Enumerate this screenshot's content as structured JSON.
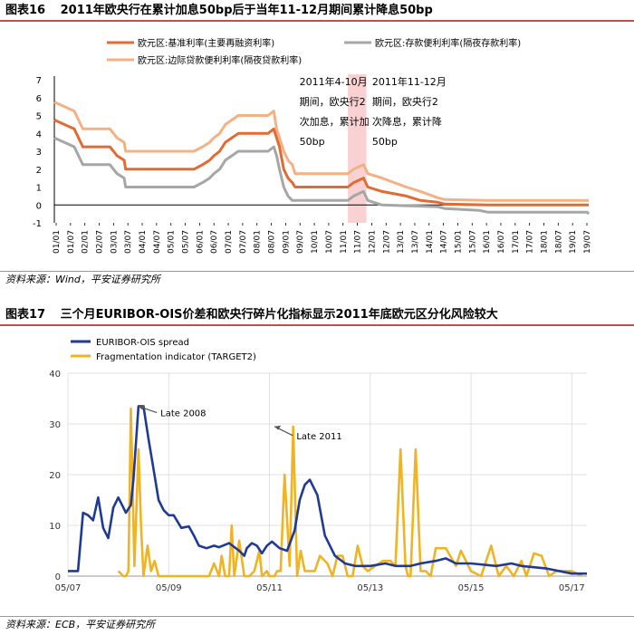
{
  "figures": [
    {
      "number": "图表16",
      "title": "2011年欧央行在累计加息50bp后于当年11-12月期间累计降息50bp",
      "source": "资料来源：Wind，平安证券研究所"
    },
    {
      "number": "图表17",
      "title": "三个月EURIBOR-OIS价差和欧央行碎片化指标显示2011年底欧元区分化风险较大",
      "source": "资料来源：ECB，平安证券研究所"
    }
  ],
  "colors": {
    "title_rule": "#c0504d",
    "main_refi": "#e26b32",
    "deposit": "#a6a6a6",
    "marginal": "#f4b183",
    "highlight": "#f7c6c7",
    "euribor": "#1f3a93",
    "fragmentation": "#f0b323"
  },
  "chart_data": [
    {
      "type": "line",
      "title": "2011年欧央行在累计加息50bp后于当年11-12月期间累计降息50bp",
      "xlabel": "",
      "ylabel": "",
      "ylim": [
        -1,
        7
      ],
      "yticks": [
        "-1",
        "0",
        "1",
        "2",
        "3",
        "4",
        "5",
        "6",
        "7"
      ],
      "x_start": 2001.0,
      "x_end": 2019.75,
      "x_tick_labels": [
        "01/01",
        "01/07",
        "02/01",
        "02/07",
        "03/01",
        "03/07",
        "04/01",
        "04/07",
        "05/01",
        "05/07",
        "06/01",
        "06/07",
        "07/01",
        "07/07",
        "08/01",
        "08/07",
        "09/01",
        "09/07",
        "10/01",
        "10/07",
        "11/01",
        "11/07",
        "12/01",
        "12/07",
        "13/01",
        "13/07",
        "14/01",
        "14/07",
        "15/01",
        "15/07",
        "16/01",
        "16/07",
        "17/01",
        "17/07",
        "18/01",
        "18/07",
        "19/01",
        "19/07"
      ],
      "highlight_span": [
        2011.3,
        2011.95
      ],
      "annotations": [
        {
          "text_lines": [
            "2011年4-10月",
            "期间，欧央行2",
            "次加息，累计加",
            "50bp"
          ],
          "x": 2009.6,
          "y": 6.6
        },
        {
          "text_lines": [
            "2011年11-12月",
            "期间，欧央行2",
            "次降息，累计降",
            "50bp"
          ],
          "x": 2012.15,
          "y": 6.6
        }
      ],
      "series": [
        {
          "name": "欧元区:基准利率(主要再融资利率)",
          "x": [
            2001.0,
            2001.35,
            2001.7,
            2001.85,
            2002.0,
            2002.95,
            2003.2,
            2003.45,
            2003.5,
            2005.9,
            2006.2,
            2006.45,
            2006.6,
            2006.8,
            2007.0,
            2007.45,
            2008.5,
            2008.7,
            2008.8,
            2008.9,
            2009.05,
            2009.2,
            2009.35,
            2009.45,
            2011.3,
            2011.5,
            2011.85,
            2012.0,
            2012.5,
            2013.35,
            2013.85,
            2014.45,
            2014.7,
            2016.2,
            2019.75
          ],
          "values": [
            4.75,
            4.5,
            4.25,
            3.75,
            3.25,
            3.25,
            2.75,
            2.5,
            2.0,
            2.0,
            2.25,
            2.5,
            2.75,
            3.0,
            3.5,
            4.0,
            4.0,
            4.25,
            3.75,
            3.25,
            2.0,
            1.5,
            1.25,
            1.0,
            1.0,
            1.25,
            1.5,
            1.0,
            0.75,
            0.5,
            0.25,
            0.15,
            0.05,
            0.0,
            0.0
          ]
        },
        {
          "name": "欧元区:存款便利利率(隔夜存款利率)",
          "x": [
            2001.0,
            2001.35,
            2001.7,
            2001.85,
            2002.0,
            2002.95,
            2003.2,
            2003.45,
            2003.5,
            2005.9,
            2006.2,
            2006.45,
            2006.6,
            2006.8,
            2007.0,
            2007.45,
            2008.5,
            2008.7,
            2008.8,
            2008.9,
            2009.05,
            2009.2,
            2009.35,
            2011.3,
            2011.5,
            2011.85,
            2012.0,
            2012.5,
            2014.45,
            2014.7,
            2015.9,
            2016.2,
            2019.7,
            2019.75
          ],
          "values": [
            3.75,
            3.5,
            3.25,
            2.75,
            2.25,
            2.25,
            1.75,
            1.5,
            1.0,
            1.0,
            1.25,
            1.5,
            1.75,
            2.0,
            2.5,
            3.0,
            3.0,
            3.25,
            2.75,
            2.0,
            1.0,
            0.5,
            0.25,
            0.25,
            0.5,
            0.75,
            0.25,
            0.0,
            -0.1,
            -0.2,
            -0.3,
            -0.4,
            -0.4,
            -0.5
          ]
        },
        {
          "name": "欧元区:边际贷款便利利率(隔夜贷款利率)",
          "x": [
            2001.0,
            2001.35,
            2001.7,
            2001.85,
            2002.0,
            2002.95,
            2003.2,
            2003.45,
            2003.5,
            2005.9,
            2006.2,
            2006.45,
            2006.6,
            2006.8,
            2007.0,
            2007.45,
            2008.5,
            2008.7,
            2008.8,
            2008.9,
            2009.05,
            2009.2,
            2009.35,
            2009.45,
            2011.3,
            2011.5,
            2011.85,
            2012.0,
            2012.5,
            2013.35,
            2013.85,
            2014.45,
            2014.7,
            2016.2,
            2019.75
          ],
          "values": [
            5.75,
            5.5,
            5.25,
            4.75,
            4.25,
            4.25,
            3.75,
            3.5,
            3.0,
            3.0,
            3.25,
            3.5,
            3.75,
            4.0,
            4.5,
            5.0,
            5.0,
            5.25,
            4.25,
            3.75,
            3.0,
            2.5,
            2.25,
            1.75,
            1.75,
            2.0,
            2.25,
            1.75,
            1.5,
            1.0,
            0.75,
            0.4,
            0.3,
            0.25,
            0.25
          ]
        }
      ]
    },
    {
      "type": "line",
      "title": "三个月EURIBOR-OIS价差和欧央行碎片化指标显示2011年底欧元区分化风险较大",
      "xlabel": "",
      "ylabel": "",
      "ylim": [
        0,
        40
      ],
      "yticks": [
        "0",
        "10",
        "20",
        "30",
        "40"
      ],
      "x_start": 2007.0,
      "x_end": 2017.3,
      "x_tick_labels": [
        "05/07",
        "05/09",
        "05/11",
        "05/13",
        "05/15",
        "05/17"
      ],
      "x_tick_positions": [
        2007.0,
        2009.0,
        2011.0,
        2013.0,
        2015.0,
        2017.0
      ],
      "annotations": [
        {
          "text": "Late 2008",
          "x": 2008.8,
          "y": 31.5,
          "arrow_to_x": 2008.4,
          "arrow_to_y": 33.5
        },
        {
          "text": "Late 2011",
          "x": 2011.5,
          "y": 27.0,
          "arrow_to_x": 2011.1,
          "arrow_to_y": 29.5
        }
      ],
      "series": [
        {
          "name": "EURIBOR-OIS spread",
          "x": [
            2007.0,
            2007.2,
            2007.3,
            2007.4,
            2007.5,
            2007.6,
            2007.7,
            2007.8,
            2007.9,
            2008.0,
            2008.15,
            2008.25,
            2008.3,
            2008.4,
            2008.5,
            2008.6,
            2008.7,
            2008.8,
            2008.9,
            2009.0,
            2009.1,
            2009.25,
            2009.4,
            2009.5,
            2009.6,
            2009.75,
            2009.9,
            2010.0,
            2010.2,
            2010.4,
            2010.5,
            2010.55,
            2010.65,
            2010.75,
            2010.85,
            2010.95,
            2011.05,
            2011.2,
            2011.35,
            2011.5,
            2011.6,
            2011.7,
            2011.8,
            2011.95,
            2012.1,
            2012.3,
            2012.5,
            2012.7,
            2013.0,
            2013.3,
            2013.5,
            2013.8,
            2014.0,
            2014.3,
            2014.5,
            2014.7,
            2015.0,
            2015.5,
            2015.8,
            2016.0,
            2016.5,
            2017.0,
            2017.3
          ],
          "values": [
            1,
            1,
            12.5,
            12,
            11,
            15.5,
            9.5,
            7.5,
            13.5,
            15.5,
            12.5,
            14,
            19,
            33.5,
            33.5,
            27,
            21,
            15,
            13,
            12,
            12,
            9.5,
            9.8,
            8,
            6,
            5.5,
            6,
            5.7,
            6.5,
            5,
            4,
            5.5,
            6.5,
            6,
            4.5,
            6,
            6.8,
            5.5,
            5,
            9,
            15,
            18,
            19,
            16,
            8,
            4,
            2.5,
            2,
            2,
            2.5,
            2,
            2,
            2.5,
            3,
            3.5,
            2.5,
            2.5,
            2,
            2.5,
            2,
            1.5,
            0.5,
            0.5
          ]
        },
        {
          "name": "Fragmentation indicator (TARGET2)",
          "x": [
            2008.0,
            2008.1,
            2008.15,
            2008.2,
            2008.25,
            2008.32,
            2008.4,
            2008.45,
            2008.5,
            2008.58,
            2008.65,
            2008.72,
            2008.8,
            2008.85,
            2008.95,
            2009.05,
            2009.15,
            2009.25,
            2009.35,
            2009.5,
            2009.7,
            2009.8,
            2009.9,
            2010.0,
            2010.05,
            2010.12,
            2010.2,
            2010.25,
            2010.3,
            2010.4,
            2010.5,
            2010.6,
            2010.7,
            2010.8,
            2010.85,
            2010.95,
            2011.0,
            2011.1,
            2011.15,
            2011.22,
            2011.3,
            2011.4,
            2011.47,
            2011.55,
            2011.62,
            2011.7,
            2011.8,
            2011.9,
            2012.0,
            2012.15,
            2012.25,
            2012.35,
            2012.45,
            2012.55,
            2012.65,
            2012.75,
            2012.85,
            2012.95,
            2013.1,
            2013.25,
            2013.4,
            2013.5,
            2013.6,
            2013.7,
            2013.75,
            2013.8,
            2013.9,
            2014.0,
            2014.1,
            2014.2,
            2014.3,
            2014.4,
            2014.5,
            2014.7,
            2014.8,
            2015.0,
            2015.2,
            2015.4,
            2015.55,
            2015.7,
            2015.85,
            2016.0,
            2016.1,
            2016.25,
            2016.4,
            2016.55,
            2016.7,
            2016.8,
            2017.0,
            2017.2
          ],
          "values": [
            1,
            0,
            0,
            1,
            33,
            2,
            25,
            10,
            0,
            6,
            1,
            3,
            0,
            0,
            0,
            0,
            0,
            0,
            0,
            0,
            0,
            0,
            2.5,
            0,
            4,
            0,
            0,
            10,
            0,
            7,
            0,
            0,
            1,
            5,
            0,
            1,
            0,
            0,
            1,
            1,
            20,
            2,
            29.5,
            0,
            5,
            1,
            1,
            1,
            4,
            2.5,
            0,
            4,
            4,
            0,
            0,
            6,
            2,
            1,
            2,
            3,
            3,
            2,
            25,
            2,
            0,
            0,
            25,
            1,
            1,
            0,
            5.5,
            5.5,
            5.5,
            2,
            5,
            1,
            0,
            6,
            0,
            2,
            0,
            3,
            0,
            4.5,
            4,
            0,
            1,
            1,
            1,
            0
          ]
        }
      ]
    }
  ]
}
